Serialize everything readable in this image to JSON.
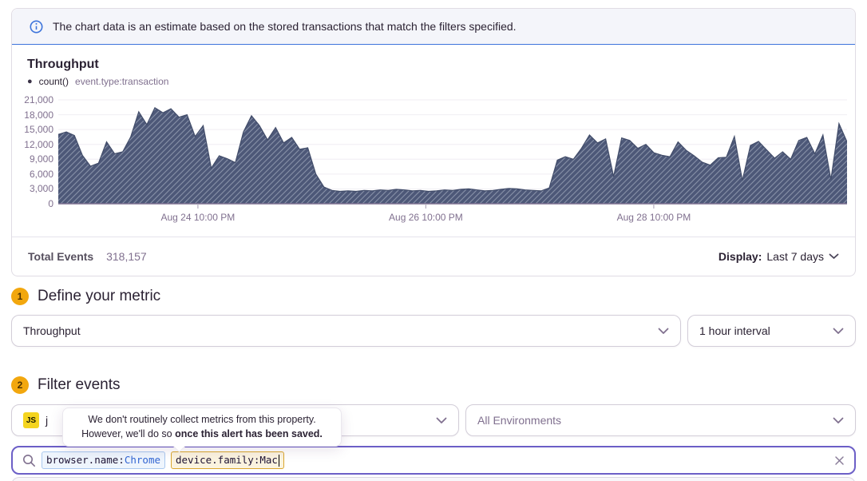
{
  "banner": {
    "text": "The chart data is an estimate based on the stored transactions that match the filters specified."
  },
  "chart_panel": {
    "title": "Throughput",
    "legend": {
      "series": "count()",
      "query": "event.type:transaction"
    },
    "footer": {
      "total_label": "Total Events",
      "total_value": "318,157",
      "display_label": "Display:",
      "display_value": "Last 7 days"
    }
  },
  "chart_data": {
    "type": "area",
    "title": "Throughput",
    "ylabel": "count()",
    "ylim": [
      0,
      21000
    ],
    "grid": "horizontal",
    "fill_color": "#4d5878",
    "hatch_color": "#97a0b5",
    "axis_color": "#7c6f8f",
    "grid_color": "#f0eef3",
    "y_ticks": [
      {
        "label": "21,000",
        "value": 21000
      },
      {
        "label": "18,000",
        "value": 18000
      },
      {
        "label": "15,000",
        "value": 15000
      },
      {
        "label": "12,000",
        "value": 12000
      },
      {
        "label": "9,000",
        "value": 9000
      },
      {
        "label": "6,000",
        "value": 6000
      },
      {
        "label": "3,000",
        "value": 3000
      },
      {
        "label": "0",
        "value": 0
      }
    ],
    "x_ticks": [
      {
        "label": "Aug 24 10:00 PM",
        "pos": 0.177
      },
      {
        "label": "Aug 26 10:00 PM",
        "pos": 0.466
      },
      {
        "label": "Aug 28 10:00 PM",
        "pos": 0.755
      }
    ],
    "series": [
      {
        "name": "count() event.type:transaction",
        "values": [
          14000,
          14500,
          13800,
          9800,
          7600,
          8200,
          12500,
          10100,
          10500,
          13500,
          18600,
          16000,
          19400,
          18400,
          19200,
          17500,
          18000,
          13600,
          15800,
          7200,
          9700,
          9100,
          8300,
          14500,
          17800,
          15800,
          12900,
          15400,
          12300,
          13400,
          11000,
          11300,
          6000,
          3400,
          2700,
          2500,
          2600,
          2500,
          2700,
          2600,
          2800,
          2700,
          2900,
          2800,
          2600,
          2700,
          2500,
          2600,
          2800,
          2700,
          2900,
          3000,
          2800,
          2600,
          2700,
          2900,
          3100,
          3000,
          2800,
          2700,
          2600,
          3200,
          8800,
          9500,
          9000,
          11200,
          13900,
          12300,
          13100,
          5500,
          13300,
          12800,
          11200,
          12000,
          10300,
          9800,
          9500,
          12500,
          10800,
          9700,
          8400,
          7800,
          9300,
          9400,
          13600,
          4700,
          11800,
          12600,
          10900,
          9200,
          10500,
          9000,
          12800,
          13400,
          10100,
          13900,
          4900,
          16200,
          12500
        ]
      }
    ]
  },
  "sections": {
    "metric": {
      "number": "1",
      "title": "Define your metric",
      "aggregate_value": "Throughput",
      "interval_value": "1 hour interval"
    },
    "filter": {
      "number": "2",
      "title": "Filter events",
      "project": {
        "avatar": "JS",
        "name_fragment": "j"
      },
      "environment_value": "All Environments"
    }
  },
  "tooltip": {
    "line1": "We don't routinely collect metrics from this property.",
    "line2_prefix": "However, we'll do so ",
    "line2_bold": "once this alert has been saved."
  },
  "search": {
    "tokens": [
      {
        "key": "browser.name:",
        "value": "Chrome"
      },
      {
        "key": "device.family:",
        "value": "Mac"
      }
    ]
  },
  "colors": {
    "accent_purple": "#6c5fc7",
    "banner_blue": "#3d74db",
    "badge_orange": "#f2a70e",
    "token_blue_border": "#a9c8ef",
    "token_amber_border": "#d9a62e"
  }
}
